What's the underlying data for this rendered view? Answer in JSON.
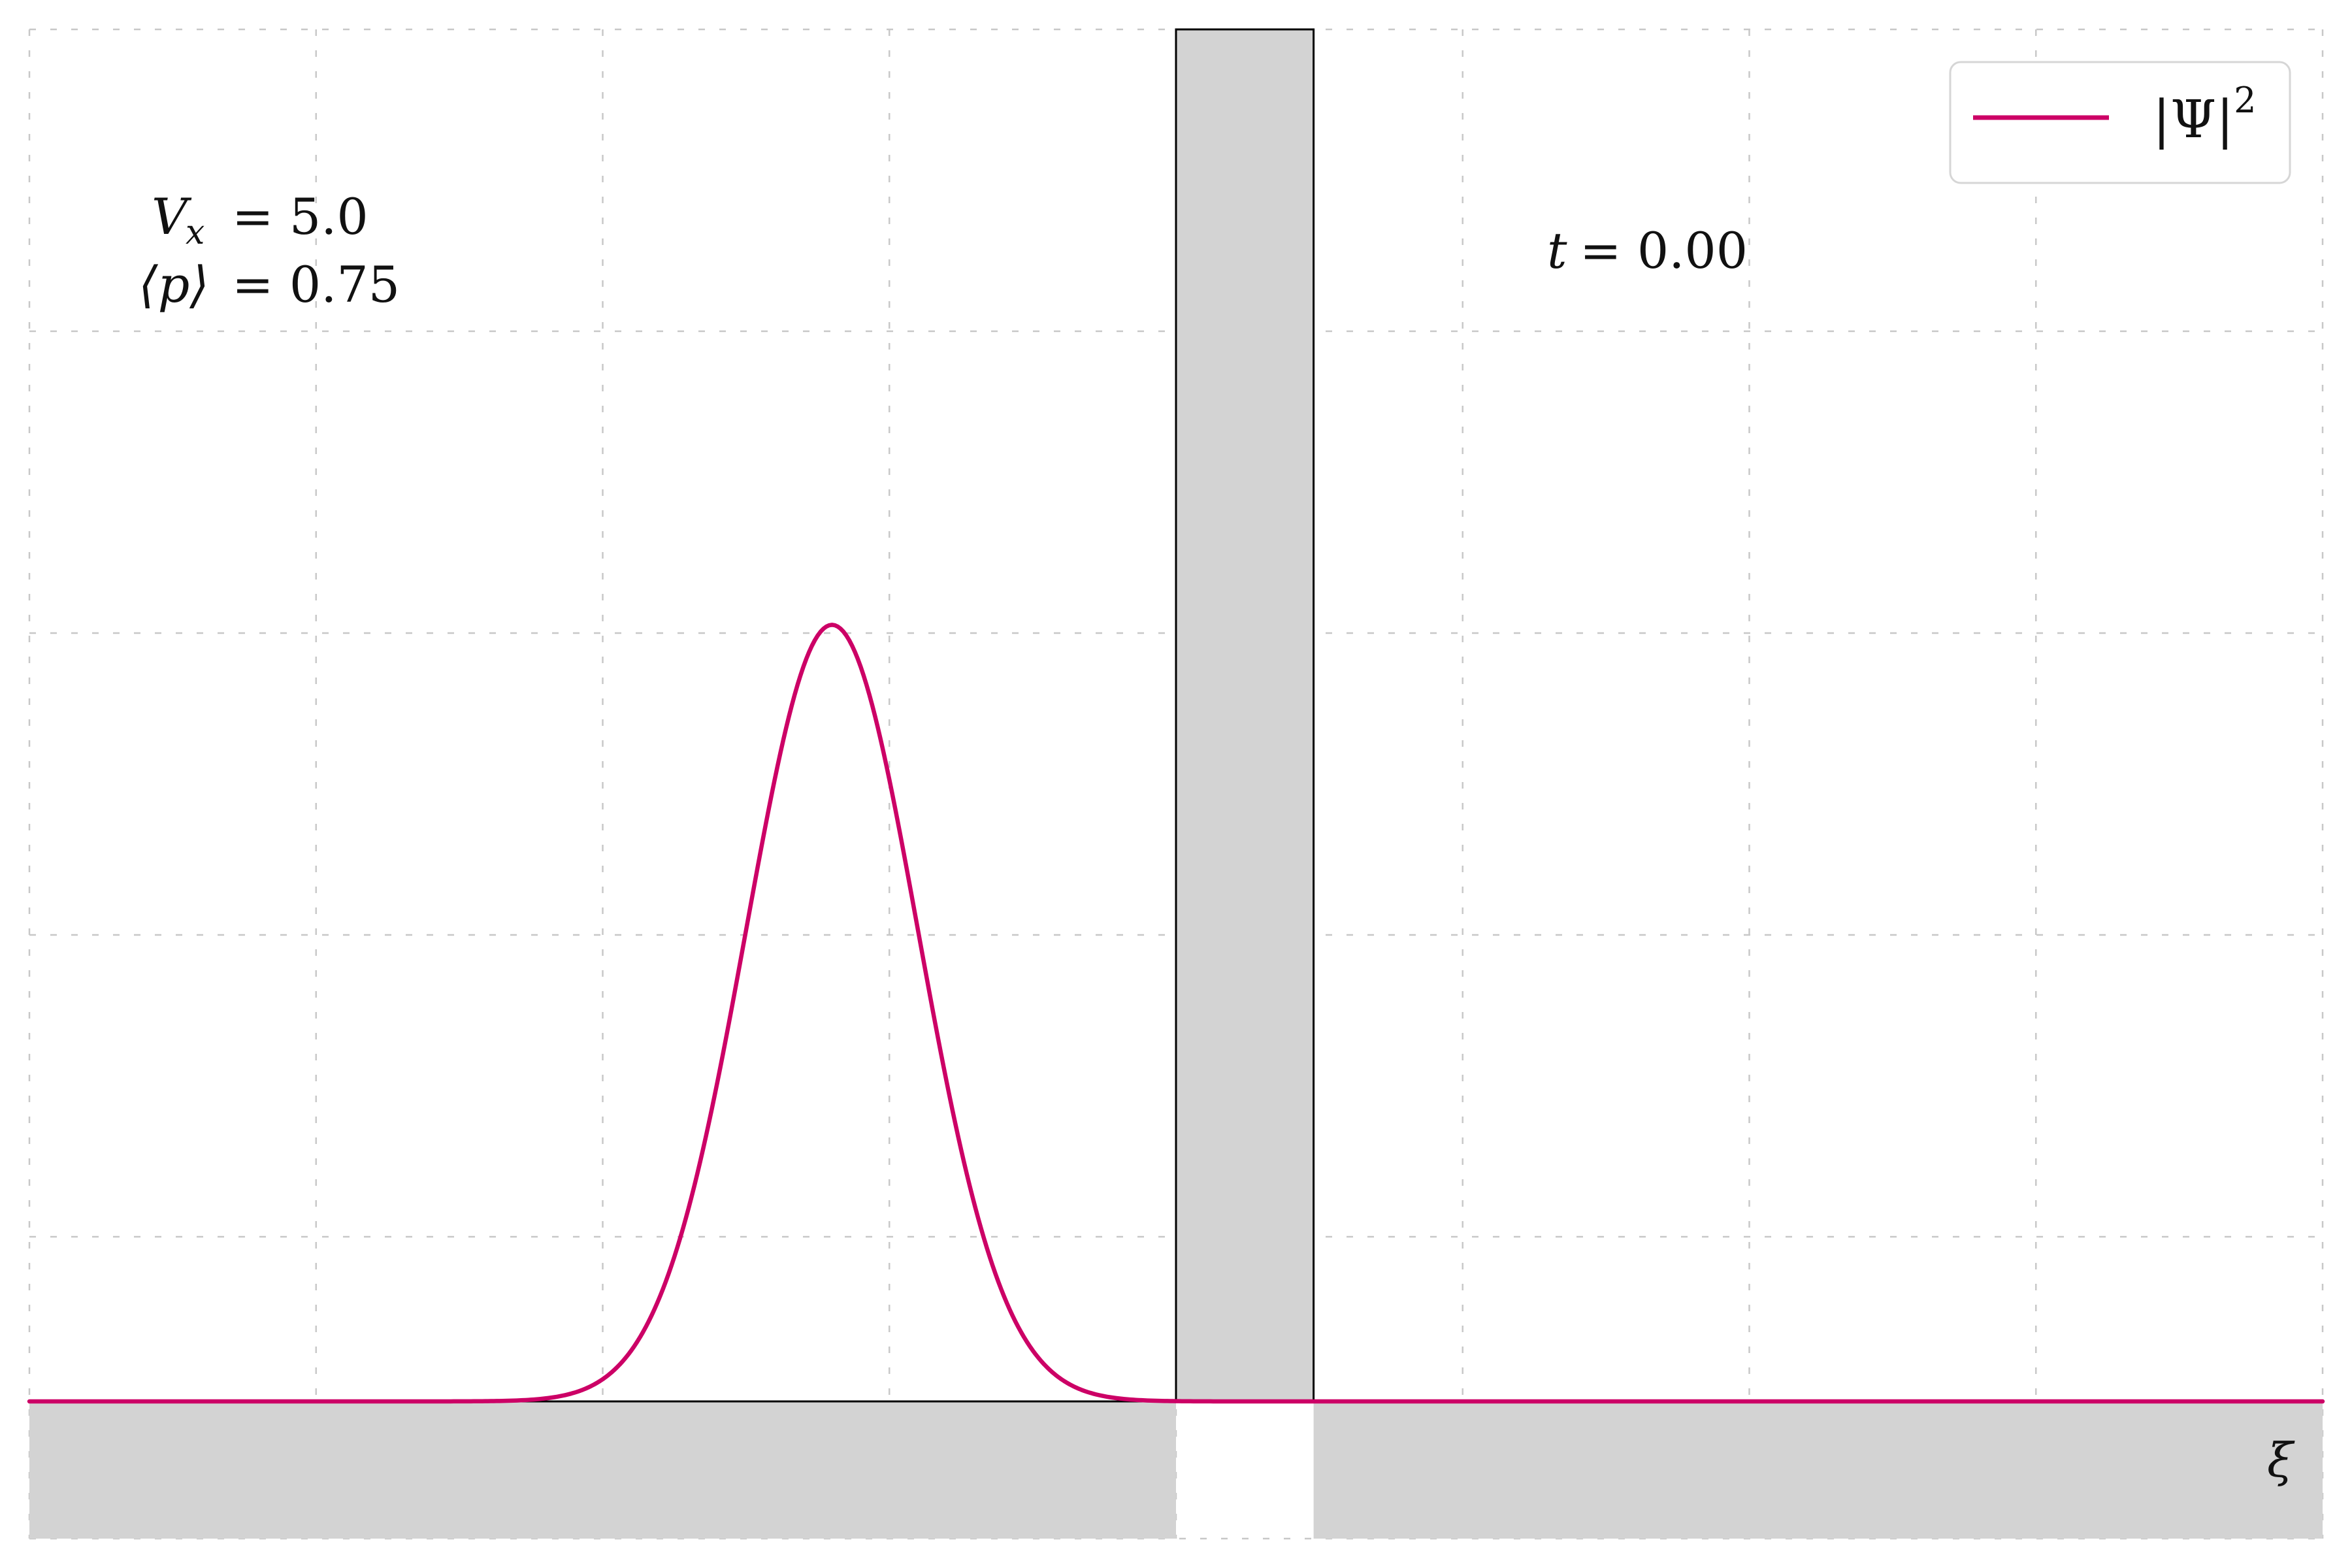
{
  "chart_data": {
    "type": "line",
    "xlabel": "ξ",
    "ylabel": "",
    "grid": true,
    "legend_placement": "top-right",
    "xlim": [
      0,
      8
    ],
    "ylim": [
      -0.5,
      5
    ],
    "series": [
      {
        "name": "|Ψ|²",
        "color": "#cc0066",
        "peak_x": 2.8,
        "peak_y": 2.83,
        "sigma": 0.3
      }
    ],
    "barrier": {
      "x_start": 4.0,
      "x_end": 4.48,
      "height": 5.0,
      "color": "#d3d3d3"
    },
    "annotations": {
      "vx_label": "V",
      "vx_sub": "x",
      "vx_value": "= 5.0",
      "p_label": "⟨p⟩",
      "p_value": "= 0.75",
      "t_label": "t",
      "t_value": "= 0.00"
    },
    "legend": {
      "entry_base": "|Ψ|",
      "entry_sup": "2"
    }
  }
}
